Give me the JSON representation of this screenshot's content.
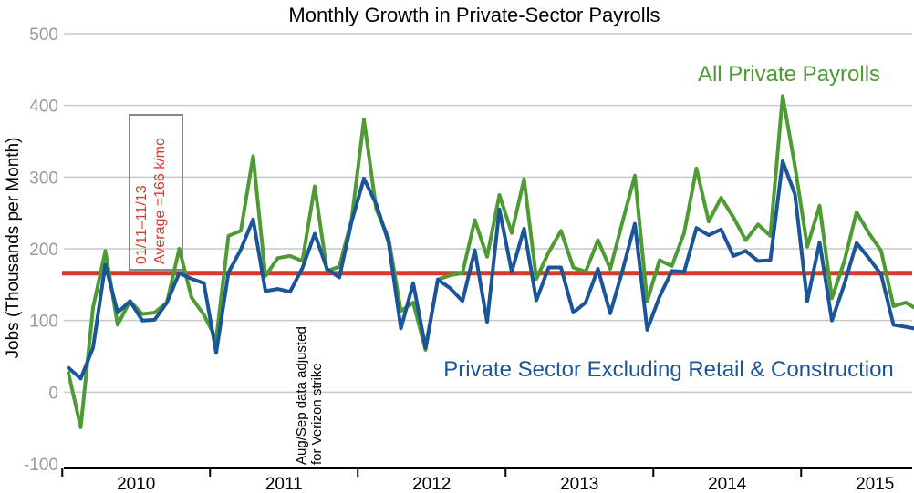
{
  "chart_data": {
    "type": "line",
    "title": "Monthly Growth in Private-Sector Payrolls",
    "xlabel": "",
    "ylabel": "Jobs (Thousands per Month)",
    "ylim": [
      -100,
      500
    ],
    "yticks": [
      500,
      400,
      300,
      200,
      100,
      0,
      -100
    ],
    "ytick_labels": [
      "500",
      "400",
      "300",
      "200",
      "100",
      "0",
      "-100"
    ],
    "grid": true,
    "x_start": "Jan 2010",
    "x_count": 72,
    "year_labels": [
      "2010",
      "2011",
      "2012",
      "2013",
      "2014",
      "2015"
    ],
    "series": [
      {
        "name": "All Private Payrolls",
        "color": "#4e9a34",
        "values": [
          27,
          -49,
          118,
          197,
          94,
          127,
          109,
          111,
          125,
          200,
          132,
          108,
          74,
          218,
          225,
          329,
          162,
          187,
          190,
          183,
          287,
          169,
          175,
          241,
          380,
          255,
          215,
          113,
          125,
          59,
          157,
          163,
          166,
          240,
          189,
          275,
          222,
          297,
          158,
          195,
          225,
          174,
          168,
          212,
          172,
          238,
          302,
          127,
          184,
          176,
          222,
          312,
          238,
          271,
          244,
          212,
          234,
          218,
          413,
          315,
          203,
          260,
          131,
          182,
          251,
          222,
          197,
          120,
          125,
          115,
          110,
          118
        ],
        "x_count": 72
      },
      {
        "name": "Private Sector Excluding Retail & Construction",
        "color": "#1a5599",
        "values": [
          34,
          19,
          62,
          178,
          111,
          127,
          100,
          101,
          125,
          166,
          158,
          152,
          55,
          167,
          199,
          241,
          141,
          144,
          140,
          173,
          221,
          172,
          160,
          238,
          298,
          262,
          209,
          89,
          152,
          62,
          157,
          145,
          127,
          198,
          98,
          255,
          168,
          228,
          128,
          174,
          174,
          111,
          125,
          172,
          110,
          170,
          235,
          87,
          133,
          169,
          168,
          229,
          219,
          227,
          190,
          197,
          183,
          184,
          322,
          276,
          127,
          209,
          100,
          150,
          208,
          187,
          164,
          94,
          91,
          88,
          87,
          86
        ],
        "x_count": 72
      }
    ],
    "reference_line": {
      "value": 166,
      "label_line1": "01/11–11/13",
      "label_line2": "Average =166 k/mo",
      "color": "#d9392b"
    },
    "annotations": {
      "series_label_green": "All Private Payrolls",
      "series_label_blue": "Private Sector Excluding Retail & Construction",
      "note_line1": "Aug/Sep data adjusted",
      "note_line2": "for Verizon strike"
    }
  }
}
